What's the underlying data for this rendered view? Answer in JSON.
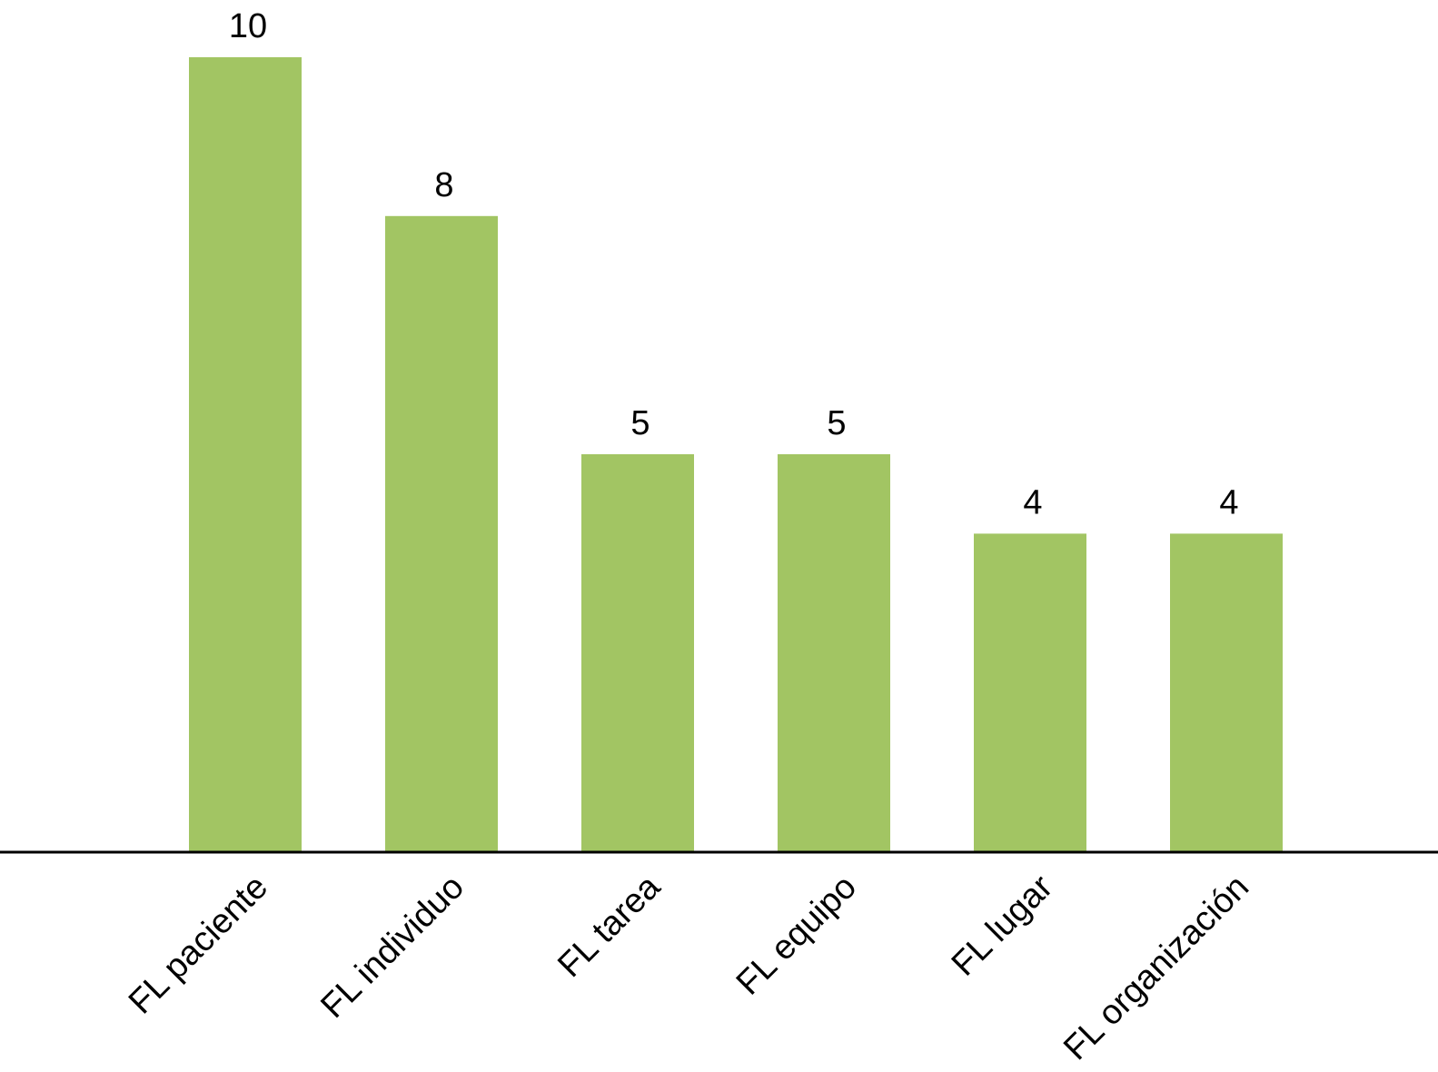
{
  "chart_data": {
    "type": "bar",
    "title": "",
    "xlabel": "",
    "ylabel": "",
    "categories": [
      "FL paciente",
      "FL individuo",
      "FL tarea",
      "FL equipo",
      "FL lugar",
      "FL organización"
    ],
    "values": [
      10,
      8,
      5,
      5,
      4,
      4
    ],
    "data_labels": [
      "10",
      "8",
      "5",
      "5",
      "4",
      "4"
    ],
    "ylim": [
      0,
      10
    ],
    "grid": false,
    "legend": "none",
    "y_axis_visible": false,
    "x_tick_label_rotation": "diagonal",
    "colors": {
      "bar": "#a2c563",
      "axis": "#000000",
      "text": "#000000",
      "background": "#ffffff"
    }
  }
}
